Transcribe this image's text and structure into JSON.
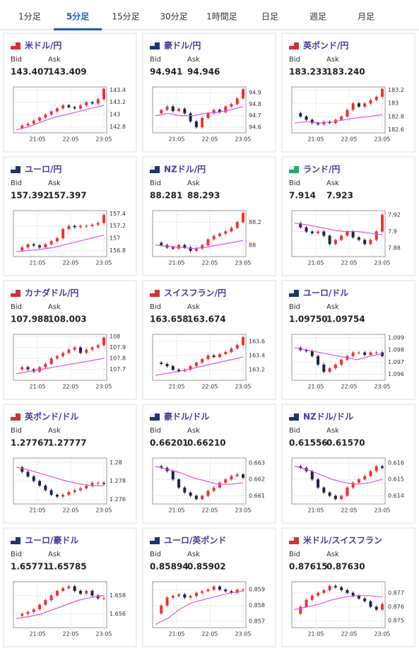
{
  "tabs": {
    "labels": [
      "1分足",
      "5分足",
      "15分足",
      "30分足",
      "1時間足",
      "日足",
      "週足",
      "月足"
    ],
    "selected": 1
  },
  "bid_label": "Bid",
  "ask_label": "Ask",
  "xticks": [
    "21:05",
    "22:05",
    "23:05"
  ],
  "cards": [
    {
      "title": "米ドル/円",
      "bid": "143.407",
      "ask": "143.409",
      "ylim": [
        142.7,
        143.45
      ],
      "yticks": [
        142.8,
        143,
        143.2,
        143.4
      ],
      "closes": [
        142.78,
        142.82,
        142.85,
        142.9,
        142.95,
        143.0,
        143.05,
        143.1,
        143.15,
        143.12,
        143.1,
        143.15,
        143.2,
        143.18,
        143.25,
        143.42
      ],
      "ma": [
        142.75,
        142.8,
        142.88,
        142.95,
        143.0,
        143.05,
        143.1,
        143.15
      ]
    },
    {
      "title": "豪ドル/円",
      "bid": "94.941",
      "ask": "94.946",
      "ylim": [
        94.55,
        94.95
      ],
      "yticks": [
        94.6,
        94.7,
        94.8,
        94.9
      ],
      "closes": [
        94.72,
        94.75,
        94.78,
        94.74,
        94.76,
        94.72,
        94.65,
        94.6,
        94.68,
        94.72,
        94.75,
        94.73,
        94.78,
        94.8,
        94.85,
        94.93
      ],
      "ma": [
        94.7,
        94.72,
        94.7,
        94.7,
        94.72,
        94.73,
        94.75,
        94.78
      ]
    },
    {
      "title": "英ポンド/円",
      "bid": "183.233",
      "ask": "183.240",
      "ylim": [
        182.55,
        183.25
      ],
      "yticks": [
        182.6,
        182.8,
        183,
        183.2
      ],
      "closes": [
        182.85,
        182.8,
        182.75,
        182.7,
        182.68,
        182.72,
        182.7,
        182.75,
        182.8,
        182.9,
        183.0,
        182.95,
        183.0,
        183.05,
        183.1,
        183.22
      ],
      "ma": [
        182.7,
        182.72,
        182.7,
        182.72,
        182.75,
        182.78,
        182.8,
        182.83
      ]
    },
    {
      "title": "ユーロ/円",
      "bid": "157.392",
      "ask": "157.397",
      "ylim": [
        156.7,
        157.45
      ],
      "yticks": [
        156.8,
        157,
        157.2,
        157.4
      ],
      "closes": [
        156.8,
        156.85,
        156.9,
        156.88,
        156.85,
        156.9,
        156.95,
        157.0,
        157.15,
        157.2,
        157.18,
        157.2,
        157.2,
        157.22,
        157.25,
        157.38
      ],
      "ma": [
        156.78,
        156.8,
        156.82,
        156.85,
        156.9,
        156.95,
        157.0,
        157.05
      ]
    },
    {
      "title": "NZドル/円",
      "bid": "88.281",
      "ask": "88.293",
      "ylim": [
        87.9,
        88.3
      ],
      "yticks": [
        88,
        88.2
      ],
      "closes": [
        88.02,
        88.0,
        87.98,
        87.97,
        88.0,
        87.98,
        87.95,
        87.97,
        88.0,
        88.05,
        88.08,
        88.1,
        88.12,
        88.15,
        88.2,
        88.28
      ],
      "ma": [
        88.0,
        87.99,
        87.98,
        87.97,
        87.98,
        88.0,
        88.02,
        88.04
      ]
    },
    {
      "title": "ランド/円",
      "bid": "7.914",
      "ask": "7.923",
      "ylim": [
        7.87,
        7.925
      ],
      "yticks": [
        7.88,
        7.9,
        7.92
      ],
      "closes": [
        7.91,
        7.905,
        7.9,
        7.898,
        7.9,
        7.895,
        7.885,
        7.89,
        7.895,
        7.9,
        7.893,
        7.89,
        7.885,
        7.89,
        7.9,
        7.92
      ],
      "ma": [
        7.91,
        7.908,
        7.905,
        7.902,
        7.9,
        7.9,
        7.898,
        7.896
      ]
    },
    {
      "title": "カナダドル/円",
      "bid": "107.988",
      "ask": "108.003",
      "ylim": [
        107.6,
        108.02
      ],
      "yticks": [
        107.7,
        107.8,
        107.9,
        108
      ],
      "closes": [
        107.7,
        107.72,
        107.7,
        107.68,
        107.72,
        107.75,
        107.8,
        107.82,
        107.85,
        107.88,
        107.9,
        107.85,
        107.88,
        107.9,
        107.92,
        107.99
      ],
      "ma": [
        107.66,
        107.68,
        107.7,
        107.72,
        107.74,
        107.76,
        107.78,
        107.8
      ]
    },
    {
      "title": "スイスフラン/円",
      "bid": "163.658",
      "ask": "163.674",
      "ylim": [
        163.05,
        163.7
      ],
      "yticks": [
        163.2,
        163.4,
        163.6
      ],
      "closes": [
        163.3,
        163.28,
        163.25,
        163.2,
        163.18,
        163.2,
        163.25,
        163.3,
        163.35,
        163.4,
        163.38,
        163.42,
        163.45,
        163.5,
        163.55,
        163.66
      ],
      "ma": [
        163.12,
        163.15,
        163.18,
        163.22,
        163.26,
        163.3,
        163.34,
        163.38
      ]
    },
    {
      "title": "ユーロ/ドル",
      "bid": "1.09750",
      "ask": "1.09754",
      "ylim": [
        1.0955,
        1.0993
      ],
      "yticks": [
        1.096,
        1.097,
        1.098,
        1.099
      ],
      "closes": [
        1.0982,
        1.098,
        1.0979,
        1.0975,
        1.0968,
        1.0962,
        1.0965,
        1.0968,
        1.0972,
        1.0975,
        1.0978,
        1.0978,
        1.0976,
        1.0978,
        1.0978,
        1.0975
      ],
      "ma": [
        1.0982,
        1.098,
        1.0978,
        1.0976,
        1.0974,
        1.0972,
        1.0975,
        1.0977
      ]
    },
    {
      "title": "英ポンド/ドル",
      "bid": "1.27767",
      "ask": "1.27777",
      "ylim": [
        1.2755,
        1.2805
      ],
      "yticks": [
        1.276,
        1.278,
        1.28
      ],
      "closes": [
        1.2795,
        1.279,
        1.2785,
        1.278,
        1.2775,
        1.277,
        1.2765,
        1.2763,
        1.2765,
        1.2768,
        1.277,
        1.2772,
        1.2775,
        1.2778,
        1.2778,
        1.2777
      ],
      "ma": [
        1.2795,
        1.2792,
        1.2788,
        1.2784,
        1.278,
        1.2777,
        1.2775,
        1.2775
      ]
    },
    {
      "title": "豪ドル/ドル",
      "bid": "0.66201",
      "ask": "0.66210",
      "ylim": [
        0.6605,
        0.6633
      ],
      "yticks": [
        0.661,
        0.662,
        0.663
      ],
      "closes": [
        0.6628,
        0.6627,
        0.6625,
        0.662,
        0.6615,
        0.6612,
        0.661,
        0.6608,
        0.661,
        0.6613,
        0.6615,
        0.6618,
        0.662,
        0.6622,
        0.6623,
        0.6621
      ],
      "ma": [
        0.6628,
        0.6626,
        0.6624,
        0.6621,
        0.6619,
        0.6617,
        0.6617,
        0.6618
      ]
    },
    {
      "title": "NZドル/ドル",
      "bid": "0.61556",
      "ask": "0.61570",
      "ylim": [
        0.6135,
        0.6163
      ],
      "yticks": [
        0.614,
        0.615,
        0.616
      ],
      "closes": [
        0.6158,
        0.6157,
        0.6155,
        0.615,
        0.6145,
        0.6142,
        0.614,
        0.6138,
        0.614,
        0.6145,
        0.6148,
        0.615,
        0.6152,
        0.6155,
        0.6158,
        0.6157
      ],
      "ma": [
        0.6158,
        0.6156,
        0.6153,
        0.615,
        0.6148,
        0.6147,
        0.6148,
        0.615
      ]
    },
    {
      "title": "ユーロ/豪ドル",
      "bid": "1.65771",
      "ask": "1.65785",
      "ylim": [
        1.6545,
        1.6595
      ],
      "yticks": [
        1.656,
        1.658
      ],
      "closes": [
        1.6558,
        1.656,
        1.6562,
        1.6565,
        1.657,
        1.6575,
        1.658,
        1.6585,
        1.6588,
        1.659,
        1.6585,
        1.6582,
        1.6585,
        1.658,
        1.6577,
        1.6577
      ],
      "ma": [
        1.6555,
        1.6557,
        1.656,
        1.6565,
        1.657,
        1.6575,
        1.6578,
        1.658
      ]
    },
    {
      "title": "ユーロ/英ポンド",
      "bid": "0.85894",
      "ask": "0.85902",
      "ylim": [
        0.8566,
        0.8595
      ],
      "yticks": [
        0.857,
        0.858,
        0.859
      ],
      "closes": [
        0.8575,
        0.858,
        0.8585,
        0.8586,
        0.8587,
        0.8585,
        0.8586,
        0.8588,
        0.8589,
        0.859,
        0.8592,
        0.859,
        0.8589,
        0.8588,
        0.859,
        0.859
      ],
      "ma": [
        0.8568,
        0.8572,
        0.8578,
        0.8582,
        0.8584,
        0.8586,
        0.8588,
        0.8589
      ]
    },
    {
      "title": "米ドル/スイスフラン",
      "bid": "0.87615",
      "ask": "0.87630",
      "ylim": [
        0.8745,
        0.8778
      ],
      "yticks": [
        0.875,
        0.876,
        0.877
      ],
      "closes": [
        0.8755,
        0.876,
        0.8765,
        0.8768,
        0.877,
        0.8772,
        0.8775,
        0.8774,
        0.8772,
        0.877,
        0.8768,
        0.8766,
        0.8764,
        0.876,
        0.8758,
        0.8762
      ],
      "ma": [
        0.8758,
        0.876,
        0.8762,
        0.8765,
        0.8767,
        0.8768,
        0.8768,
        0.8767
      ]
    }
  ]
}
